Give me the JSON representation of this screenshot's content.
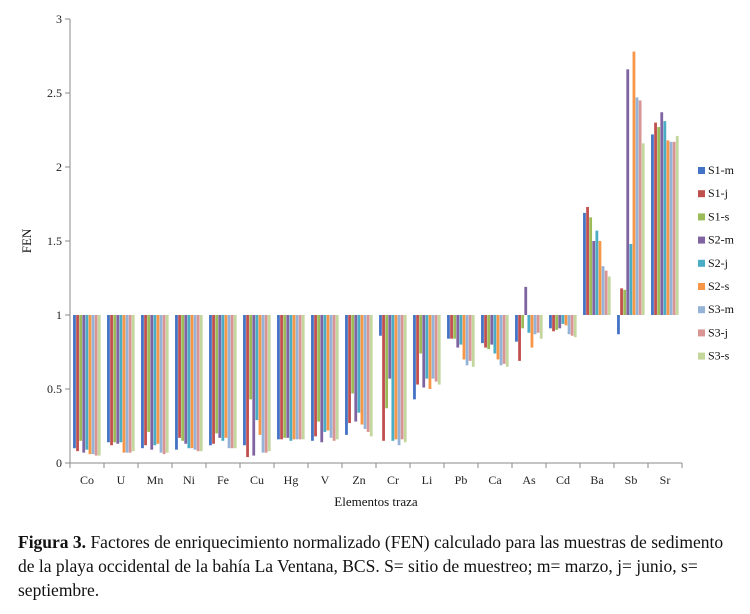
{
  "chart_data": {
    "type": "bar",
    "title": "",
    "xlabel": "Elementos  traza",
    "ylabel": "FEN",
    "ylim": [
      0,
      3
    ],
    "yticks": [
      "0",
      "0.5",
      "1",
      "1.5",
      "2",
      "2.5",
      "3"
    ],
    "baseline": 1,
    "grid": false,
    "legend_position": "right",
    "categories": [
      "Co",
      "U",
      "Mn",
      "Ni",
      "Fe",
      "Cu",
      "Hg",
      "V",
      "Zn",
      "Cr",
      "Li",
      "Pb",
      "Ca",
      "As",
      "Cd",
      "Ba",
      "Sb",
      "Sr"
    ],
    "series": [
      {
        "name": "S1-m",
        "color": "#4472C4",
        "values": [
          0.1,
          0.14,
          0.1,
          0.09,
          0.12,
          0.12,
          0.16,
          0.15,
          0.19,
          0.86,
          0.43,
          0.84,
          0.81,
          0.82,
          0.91,
          1.69,
          0.87,
          2.22
        ]
      },
      {
        "name": "S1-j",
        "color": "#C0504D",
        "values": [
          0.08,
          0.12,
          0.12,
          0.17,
          0.13,
          0.04,
          0.16,
          0.18,
          0.27,
          0.15,
          0.53,
          0.84,
          0.78,
          0.69,
          0.89,
          1.73,
          1.18,
          2.3
        ]
      },
      {
        "name": "S1-s",
        "color": "#9BBB59",
        "values": [
          0.15,
          0.14,
          0.21,
          0.15,
          0.2,
          0.43,
          0.17,
          0.28,
          0.47,
          0.37,
          0.74,
          0.84,
          0.77,
          0.91,
          0.9,
          1.66,
          1.17,
          2.27
        ]
      },
      {
        "name": "S2-m",
        "color": "#8064A2",
        "values": [
          0.07,
          0.13,
          0.09,
          0.13,
          0.17,
          0.05,
          0.17,
          0.14,
          0.28,
          0.57,
          0.51,
          0.78,
          0.8,
          1.19,
          0.91,
          1.5,
          2.66,
          2.37
        ]
      },
      {
        "name": "S2-j",
        "color": "#4BACC6",
        "values": [
          0.09,
          0.14,
          0.12,
          0.1,
          0.15,
          0.29,
          0.15,
          0.21,
          0.34,
          0.15,
          0.57,
          0.8,
          0.74,
          0.88,
          0.94,
          1.57,
          1.48,
          2.31
        ]
      },
      {
        "name": "S2-s",
        "color": "#F79646",
        "values": [
          0.06,
          0.07,
          0.13,
          0.1,
          0.17,
          0.19,
          0.16,
          0.22,
          0.26,
          0.16,
          0.5,
          0.7,
          0.7,
          0.78,
          0.93,
          1.5,
          2.78,
          2.18
        ]
      },
      {
        "name": "S3-m",
        "color": "#95B3D7",
        "values": [
          0.06,
          0.07,
          0.07,
          0.09,
          0.1,
          0.07,
          0.16,
          0.17,
          0.23,
          0.12,
          0.57,
          0.66,
          0.66,
          0.87,
          0.87,
          1.33,
          2.47,
          2.17
        ]
      },
      {
        "name": "S3-j",
        "color": "#D99594",
        "values": [
          0.05,
          0.07,
          0.06,
          0.08,
          0.1,
          0.07,
          0.16,
          0.15,
          0.21,
          0.16,
          0.55,
          0.69,
          0.67,
          0.88,
          0.86,
          1.3,
          2.45,
          2.17
        ]
      },
      {
        "name": "S3-s",
        "color": "#C3D69B",
        "values": [
          0.05,
          0.08,
          0.07,
          0.08,
          0.1,
          0.08,
          0.16,
          0.16,
          0.18,
          0.14,
          0.53,
          0.65,
          0.65,
          0.84,
          0.85,
          1.26,
          2.16,
          2.21
        ]
      }
    ]
  },
  "caption": {
    "label": "Figura 3.",
    "text": " Factores de enriquecimiento normalizado (FEN) calculado para las muestras de sedimento de la playa occidental de la bahía La Ventana, BCS. S= sitio de muestreo; m= marzo, j= junio, s= septiembre."
  }
}
